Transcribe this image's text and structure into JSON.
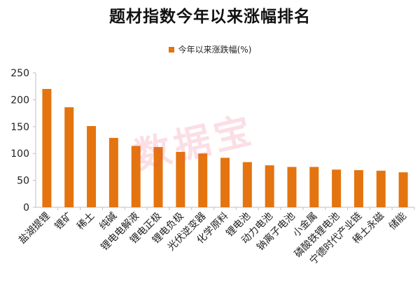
{
  "title": "题材指数今年以来涨幅排名",
  "watermark": "数据宝",
  "colors": {
    "bar": "#e4740f",
    "axis": "#bfbfbf",
    "text": "#222222"
  },
  "chart_data": {
    "type": "bar",
    "legend": "今年以来涨跌幅(%)",
    "legend_position": "top-center",
    "grid": false,
    "ylim": [
      0,
      250
    ],
    "yticks": [
      0,
      50,
      100,
      150,
      200,
      250
    ],
    "categories": [
      "盐湖提锂",
      "锂矿",
      "稀土",
      "纯碱",
      "锂电电解液",
      "锂电正极",
      "锂电负极",
      "光伏逆变器",
      "化学原料",
      "锂电池",
      "动力电池",
      "钠离子电池",
      "小金属",
      "磷酸铁锂电池",
      "宁德时代产业链",
      "稀土永磁",
      "储能"
    ],
    "series": [
      {
        "name": "今年以来涨跌幅(%)",
        "values": [
          220,
          186,
          151,
          129,
          114,
          112,
          103,
          100,
          92,
          84,
          78,
          75,
          75,
          70,
          69,
          68,
          65
        ]
      }
    ]
  }
}
